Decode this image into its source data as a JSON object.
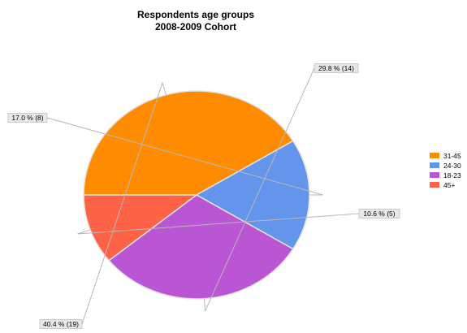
{
  "chart_data": {
    "type": "pie",
    "title": "Respondents age groups",
    "subtitle": "2008-2009 Cohort",
    "legend_placement": "right",
    "slices": [
      {
        "name": "31-45",
        "value": 19,
        "percent": 40.4,
        "label": "40.4 % (19)",
        "color": "#ff8c00"
      },
      {
        "name": "24-30",
        "value": 8,
        "percent": 17.0,
        "label": "17.0 % (8)",
        "color": "#6495ed"
      },
      {
        "name": "18-23",
        "value": 14,
        "percent": 29.8,
        "label": "29.8 % (14)",
        "color": "#ba55d3"
      },
      {
        "name": "45+",
        "value": 5,
        "percent": 10.6,
        "label": "10.6 % (5)",
        "color": "#ff6347"
      }
    ]
  }
}
